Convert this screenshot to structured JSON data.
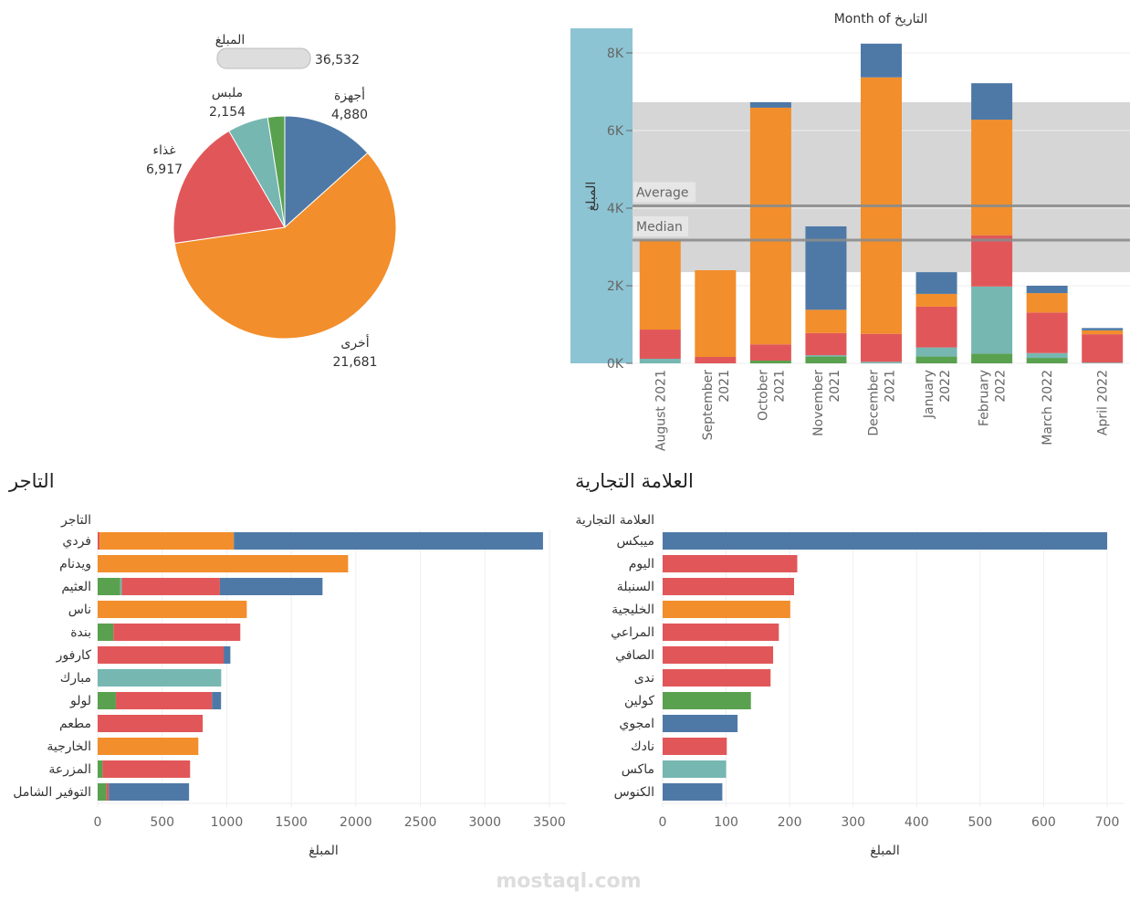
{
  "colors": {
    "blue": "#4e79a7",
    "orange": "#f28e2b",
    "red": "#e15759",
    "teal": "#76b7b2",
    "green": "#59a14f",
    "axis_band": "#8dc4d3",
    "ref_band": "#d6d6d6",
    "ref_line": "#8c8c8c"
  },
  "watermark": "mostaql.com",
  "chart_data": [
    {
      "type": "pie",
      "legend_title": "المبلغ",
      "legend_value": "36,532",
      "slices": [
        {
          "label": "أجهزة",
          "value": 4880,
          "display": "4,880",
          "color": "blue"
        },
        {
          "label": "أخرى",
          "value": 21681,
          "display": "21,681",
          "color": "orange"
        },
        {
          "label": "غذاء",
          "value": 6917,
          "display": "6,917",
          "color": "red"
        },
        {
          "label": "ملبس",
          "value": 2154,
          "display": "2,154",
          "color": "teal"
        },
        {
          "label": "",
          "value": 900,
          "display": "",
          "color": "green"
        }
      ]
    },
    {
      "type": "bar",
      "stacked": true,
      "title": "Month of التاريخ",
      "ylabel": "المبلغ",
      "ylim": [
        0,
        8700
      ],
      "yticks": [
        {
          "v": 0,
          "l": "0K"
        },
        {
          "v": 2000,
          "l": "2K"
        },
        {
          "v": 4000,
          "l": "4K"
        },
        {
          "v": 6000,
          "l": "6K"
        },
        {
          "v": 8000,
          "l": "8K"
        }
      ],
      "reference_lines": [
        {
          "label": "Average",
          "value": 4059
        },
        {
          "label": "Median",
          "value": 3176
        }
      ],
      "reference_band": [
        2350,
        6730
      ],
      "grid": true,
      "categories": [
        "August 2021",
        "September 2021",
        "October 2021",
        "November 2021",
        "December 2021",
        "January 2022",
        "February 2022",
        "March 2022",
        "April 2022"
      ],
      "stacks": [
        [
          {
            "color": "teal",
            "value": 118
          },
          {
            "color": "red",
            "value": 752
          },
          {
            "color": "orange",
            "value": 2306
          }
        ],
        [
          {
            "color": "red",
            "value": 165
          },
          {
            "color": "orange",
            "value": 2235
          }
        ],
        [
          {
            "color": "green",
            "value": 70
          },
          {
            "color": "red",
            "value": 420
          },
          {
            "color": "orange",
            "value": 6100
          },
          {
            "color": "blue",
            "value": 140
          }
        ],
        [
          {
            "color": "green",
            "value": 175
          },
          {
            "color": "teal",
            "value": 35
          },
          {
            "color": "red",
            "value": 570
          },
          {
            "color": "orange",
            "value": 600
          },
          {
            "color": "blue",
            "value": 2150
          }
        ],
        [
          {
            "color": "teal",
            "value": 40
          },
          {
            "color": "red",
            "value": 720
          },
          {
            "color": "orange",
            "value": 6610
          },
          {
            "color": "blue",
            "value": 870
          }
        ],
        [
          {
            "color": "green",
            "value": 175
          },
          {
            "color": "teal",
            "value": 235
          },
          {
            "color": "red",
            "value": 1050
          },
          {
            "color": "orange",
            "value": 330
          },
          {
            "color": "blue",
            "value": 560
          }
        ],
        [
          {
            "color": "green",
            "value": 250
          },
          {
            "color": "teal",
            "value": 1730
          },
          {
            "color": "red",
            "value": 1320
          },
          {
            "color": "orange",
            "value": 2980
          },
          {
            "color": "blue",
            "value": 940
          }
        ],
        [
          {
            "color": "green",
            "value": 140
          },
          {
            "color": "teal",
            "value": 125
          },
          {
            "color": "red",
            "value": 1045
          },
          {
            "color": "orange",
            "value": 500
          },
          {
            "color": "blue",
            "value": 190
          }
        ],
        [
          {
            "color": "teal",
            "value": 20
          },
          {
            "color": "red",
            "value": 730
          },
          {
            "color": "orange",
            "value": 100
          },
          {
            "color": "blue",
            "value": 60
          }
        ]
      ]
    },
    {
      "type": "bar",
      "orientation": "horizontal",
      "stacked": true,
      "title": "التاجر",
      "column_header": "التاجر",
      "xlabel": "المبلغ",
      "xlim": [
        0,
        3550
      ],
      "xticks": [
        0,
        500,
        1000,
        1500,
        2000,
        2500,
        3000,
        3500
      ],
      "grid": true,
      "rows": [
        {
          "label": "فردي",
          "segments": [
            {
              "color": "red",
              "value": 15
            },
            {
              "color": "orange",
              "value": 1040
            },
            {
              "color": "blue",
              "value": 2395
            }
          ]
        },
        {
          "label": "ويدنام",
          "segments": [
            {
              "color": "orange",
              "value": 1940
            }
          ]
        },
        {
          "label": "العثيم",
          "segments": [
            {
              "color": "green",
              "value": 175
            },
            {
              "color": "teal",
              "value": 12
            },
            {
              "color": "red",
              "value": 760
            },
            {
              "color": "blue",
              "value": 795
            }
          ]
        },
        {
          "label": "ناس",
          "segments": [
            {
              "color": "orange",
              "value": 1155
            }
          ]
        },
        {
          "label": "بندة",
          "segments": [
            {
              "color": "green",
              "value": 122
            },
            {
              "color": "red",
              "value": 983
            }
          ]
        },
        {
          "label": "كارفور",
          "segments": [
            {
              "color": "red",
              "value": 976
            },
            {
              "color": "blue",
              "value": 52
            }
          ]
        },
        {
          "label": "مبارك",
          "segments": [
            {
              "color": "teal",
              "value": 957
            }
          ]
        },
        {
          "label": "لولو",
          "segments": [
            {
              "color": "green",
              "value": 141
            },
            {
              "color": "red",
              "value": 745
            },
            {
              "color": "blue",
              "value": 70
            }
          ]
        },
        {
          "label": "مطعم",
          "segments": [
            {
              "color": "red",
              "value": 814
            }
          ]
        },
        {
          "label": "الخارجية",
          "segments": [
            {
              "color": "orange",
              "value": 780
            }
          ]
        },
        {
          "label": "المزرعة",
          "segments": [
            {
              "color": "green",
              "value": 38
            },
            {
              "color": "red",
              "value": 678
            }
          ]
        },
        {
          "label": "التوفير الشامل",
          "segments": [
            {
              "color": "green",
              "value": 68
            },
            {
              "color": "red",
              "value": 18
            },
            {
              "color": "blue",
              "value": 622
            }
          ]
        }
      ]
    },
    {
      "type": "bar",
      "orientation": "horizontal",
      "title": "العلامة التجارية",
      "column_header": "العلامة التجارية",
      "xlabel": "المبلغ",
      "xlim": [
        0,
        725
      ],
      "xticks": [
        0,
        100,
        200,
        300,
        400,
        500,
        600,
        700
      ],
      "grid": true,
      "rows": [
        {
          "label": "ميبكس",
          "value": 700,
          "color": "blue"
        },
        {
          "label": "اليوم",
          "value": 212,
          "color": "red"
        },
        {
          "label": "السنبلة",
          "value": 207,
          "color": "red"
        },
        {
          "label": "الخليجية",
          "value": 201,
          "color": "orange"
        },
        {
          "label": "المراعي",
          "value": 183,
          "color": "red"
        },
        {
          "label": "الصافي",
          "value": 174,
          "color": "red"
        },
        {
          "label": "ندى",
          "value": 170,
          "color": "red"
        },
        {
          "label": "كولين",
          "value": 139,
          "color": "green"
        },
        {
          "label": "امجوي",
          "value": 118,
          "color": "blue"
        },
        {
          "label": "نادك",
          "value": 101,
          "color": "red"
        },
        {
          "label": "ماكس",
          "value": 100,
          "color": "teal"
        },
        {
          "label": "الكنوس",
          "value": 94,
          "color": "blue"
        }
      ]
    }
  ]
}
